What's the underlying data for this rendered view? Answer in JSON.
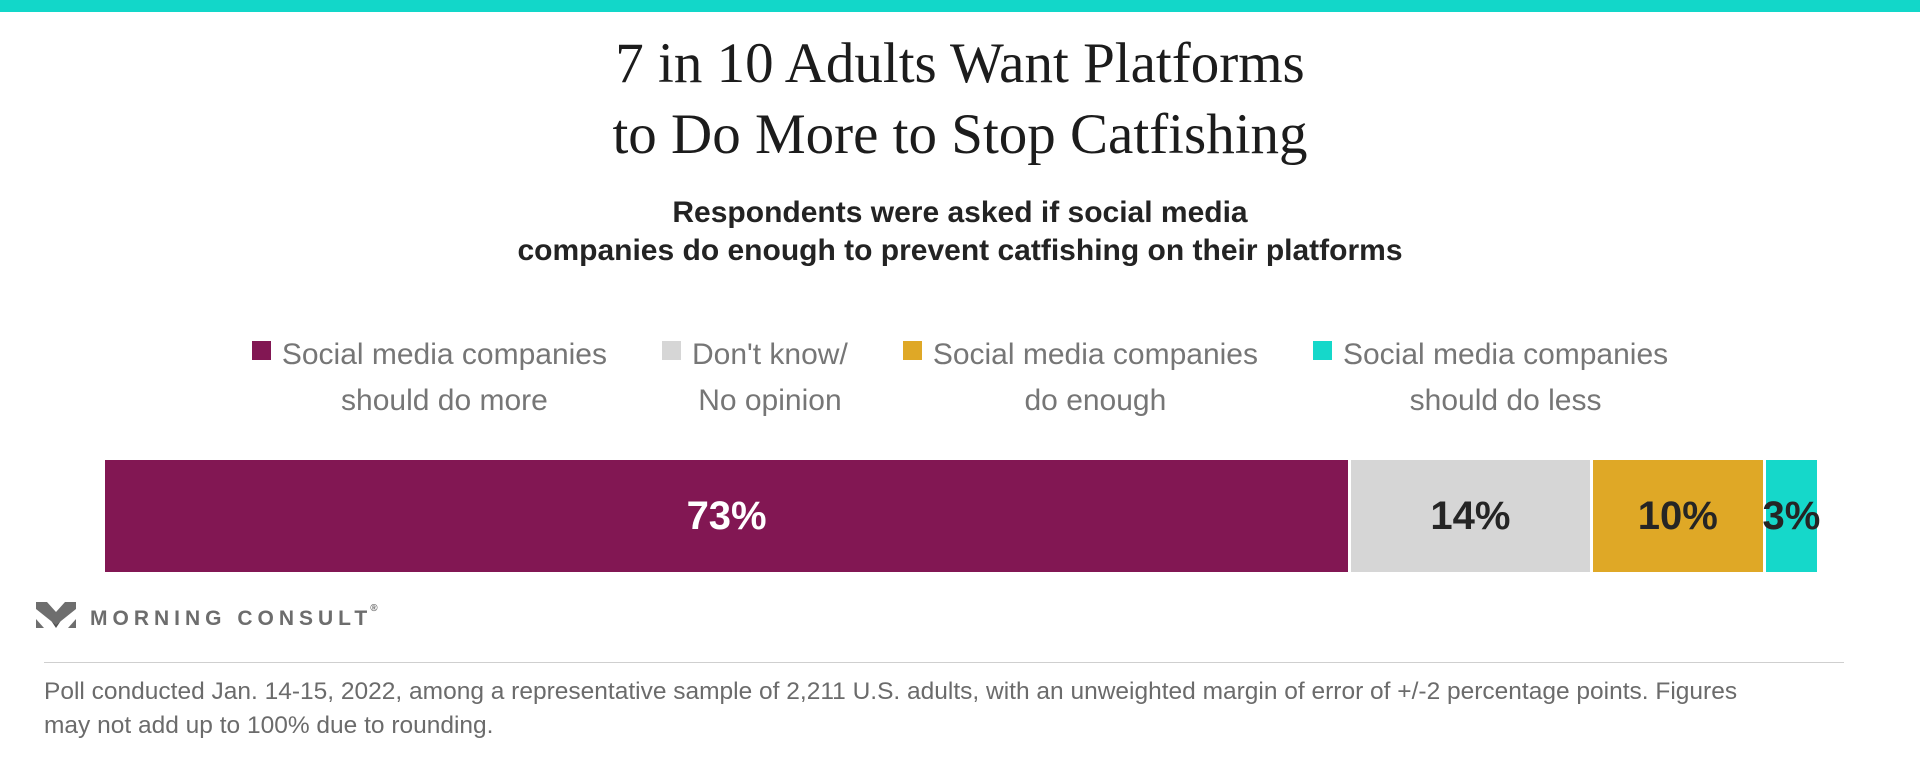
{
  "brand": {
    "accent_color": "#12d7c9",
    "logo_text": "MORNING CONSULT",
    "registered_mark": "®"
  },
  "header": {
    "title_line1": "7 in 10 Adults Want Platforms",
    "title_line2": "to Do More to Stop Catfishing",
    "subtitle_line1": "Respondents were asked if social media",
    "subtitle_line2": "companies do enough to prevent catfishing on their platforms"
  },
  "legend": {
    "items": [
      {
        "line1": "Social media companies",
        "line2": "should do more",
        "color": "#821753"
      },
      {
        "line1": "Don't know/",
        "line2": "No opinion",
        "color": "#d6d6d6"
      },
      {
        "line1": "Social media companies",
        "line2": "do enough",
        "color": "#dfa826"
      },
      {
        "line1": "Social media companies",
        "line2": "should do less",
        "color": "#15d8ca"
      }
    ]
  },
  "chart_data": {
    "type": "bar",
    "orientation": "horizontal_stacked",
    "title": "7 in 10 Adults Want Platforms to Do More to Stop Catfishing",
    "subtitle": "Respondents were asked if social media companies do enough to prevent catfishing on their platforms",
    "unit": "%",
    "legend_position": "top",
    "axis": "none",
    "categories": [
      "Social media companies should do more",
      "Don't know/No opinion",
      "Social media companies do enough",
      "Social media companies should do less"
    ],
    "values": [
      73,
      14,
      10,
      3
    ],
    "segments": [
      {
        "label": "73%",
        "value": 73,
        "color": "#821753",
        "label_color": "#ffffff"
      },
      {
        "label": "14%",
        "value": 14,
        "color": "#d6d6d6",
        "label_color": "#252525"
      },
      {
        "label": "10%",
        "value": 10,
        "color": "#dfa826",
        "label_color": "#252525"
      },
      {
        "label": "3%",
        "value": 3,
        "color": "#15d8ca",
        "label_color": "#252525"
      }
    ]
  },
  "footer": {
    "note_line1": "Poll conducted Jan. 14-15, 2022, among a representative sample of 2,211 U.S. adults, with an unweighted margin of error of +/-2 percentage points. Figures",
    "note_line2": "may not add up to 100% due to rounding."
  }
}
